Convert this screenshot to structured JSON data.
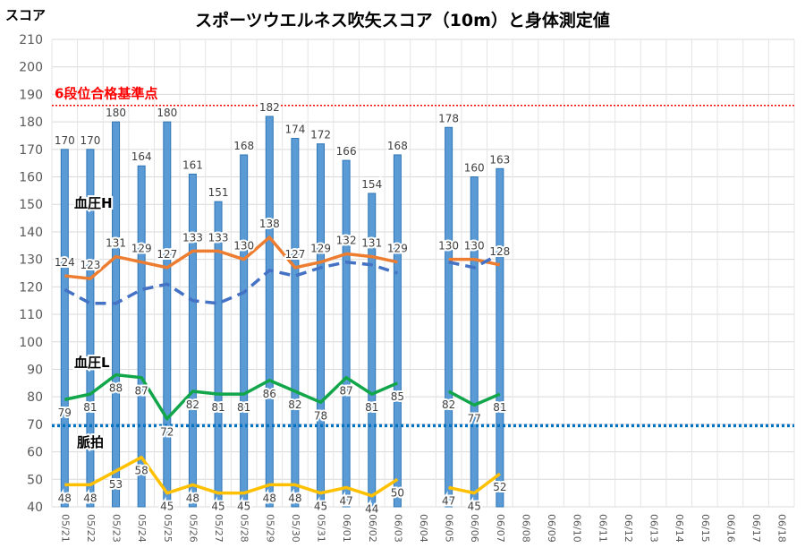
{
  "chart_data": {
    "type": "bar",
    "title": "スポーツウエルネス吹矢スコア（10m）と身体測定値",
    "ylabel": "スコア",
    "ylim": [
      40,
      210
    ],
    "yticks": [
      40,
      50,
      60,
      70,
      80,
      90,
      100,
      110,
      120,
      130,
      140,
      150,
      160,
      170,
      180,
      190,
      200,
      210
    ],
    "grid": true,
    "categories": [
      "05/21",
      "05/22",
      "05/23",
      "05/24",
      "05/25",
      "05/26",
      "05/27",
      "05/28",
      "05/29",
      "05/30",
      "05/31",
      "06/01",
      "06/02",
      "06/03",
      "06/04",
      "06/05",
      "06/06",
      "06/07",
      "06/08",
      "06/09",
      "06/10",
      "06/11",
      "06/12",
      "06/13",
      "06/14",
      "06/15",
      "06/16",
      "06/17",
      "06/18"
    ],
    "bars": {
      "color": "#5b9bd5",
      "values": [
        170,
        170,
        180,
        164,
        180,
        161,
        151,
        168,
        182,
        174,
        172,
        166,
        154,
        168,
        null,
        178,
        160,
        163,
        null,
        null,
        null,
        null,
        null,
        null,
        null,
        null,
        null,
        null,
        null
      ]
    },
    "lines": [
      {
        "name": "血圧H",
        "color": "#ed7d31",
        "values": [
          124,
          123,
          131,
          129,
          127,
          133,
          133,
          130,
          138,
          127,
          129,
          132,
          131,
          129,
          null,
          130,
          130,
          128,
          null,
          null,
          null,
          null,
          null,
          null,
          null,
          null,
          null,
          null,
          null
        ]
      },
      {
        "name": "",
        "color": "#4472c4",
        "dashed": true,
        "values": [
          119,
          114,
          114,
          119,
          121,
          115,
          114,
          118,
          126,
          124,
          127,
          129,
          128,
          125,
          null,
          129,
          127,
          132,
          null,
          null,
          null,
          null,
          null,
          null,
          null,
          null,
          null,
          null,
          null
        ]
      },
      {
        "name": "血圧L",
        "color": "#12a64a",
        "values": [
          79,
          81,
          88,
          87,
          72,
          82,
          81,
          81,
          86,
          82,
          78,
          87,
          81,
          85,
          null,
          82,
          77,
          81,
          null,
          null,
          null,
          null,
          null,
          null,
          null,
          null,
          null,
          null,
          null
        ]
      },
      {
        "name": "脈拍",
        "color": "#ffc000",
        "values": [
          48,
          48,
          53,
          58,
          45,
          48,
          45,
          45,
          48,
          48,
          45,
          47,
          44,
          50,
          null,
          47,
          45,
          52,
          null,
          null,
          null,
          null,
          null,
          null,
          null,
          null,
          null,
          null,
          null
        ]
      }
    ],
    "reference_lines": [
      {
        "label": "6段位合格基準点",
        "value": 186,
        "color": "#ff0000"
      },
      {
        "label": "",
        "value": 69.5,
        "color": "#0070c0"
      }
    ]
  }
}
